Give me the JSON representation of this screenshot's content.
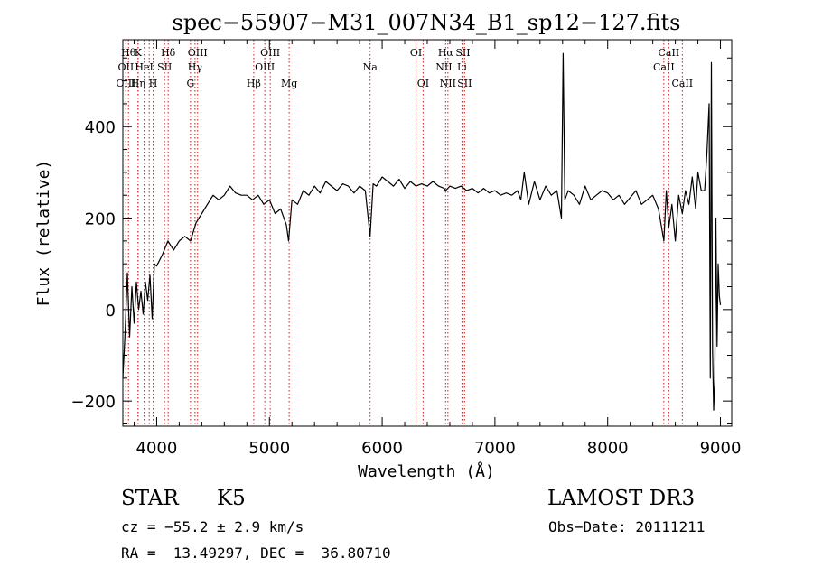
{
  "chart_data": {
    "type": "line",
    "title": "spec−55907−M31_007N34_B1_sp12−127.fits",
    "xlabel": "Wavelength (Å)",
    "ylabel": "Flux (relative)",
    "xlim": [
      3700,
      9100
    ],
    "ylim": [
      -255,
      590
    ],
    "xticks": [
      {
        "value": 4000,
        "label": "4000"
      },
      {
        "value": 5000,
        "label": "5000"
      },
      {
        "value": 6000,
        "label": "6000"
      },
      {
        "value": 7000,
        "label": "7000"
      },
      {
        "value": 8000,
        "label": "8000"
      },
      {
        "value": 9000,
        "label": "9000"
      }
    ],
    "yticks": [
      {
        "value": -200,
        "label": "−200"
      },
      {
        "value": 0,
        "label": "0"
      },
      {
        "value": 200,
        "label": "200"
      },
      {
        "value": 400,
        "label": "400"
      }
    ],
    "grid": false,
    "line_color": "#000000",
    "marker_color": "#b22222",
    "series": [
      {
        "x": [
          3700,
          3720,
          3740,
          3760,
          3780,
          3800,
          3820,
          3840,
          3860,
          3880,
          3900,
          3920,
          3940,
          3960,
          3980,
          4000,
          4050,
          4100,
          4150,
          4200,
          4250,
          4300,
          4350,
          4400,
          4450,
          4500,
          4550,
          4600,
          4650,
          4700,
          4750,
          4800,
          4850,
          4900,
          4950,
          5000,
          5050,
          5100,
          5150,
          5170,
          5200,
          5250,
          5300,
          5350,
          5400,
          5450,
          5500,
          5550,
          5600,
          5650,
          5700,
          5750,
          5800,
          5850,
          5893,
          5920,
          5950,
          6000,
          6050,
          6100,
          6150,
          6200,
          6250,
          6300,
          6350,
          6400,
          6450,
          6500,
          6550,
          6563,
          6600,
          6650,
          6700,
          6750,
          6800,
          6850,
          6900,
          6950,
          7000,
          7050,
          7100,
          7150,
          7200,
          7230,
          7260,
          7300,
          7350,
          7400,
          7450,
          7500,
          7550,
          7590,
          7605,
          7620,
          7650,
          7700,
          7750,
          7800,
          7850,
          7900,
          7950,
          8000,
          8050,
          8100,
          8150,
          8200,
          8250,
          8300,
          8350,
          8400,
          8450,
          8498,
          8520,
          8542,
          8570,
          8600,
          8630,
          8662,
          8690,
          8720,
          8750,
          8780,
          8800,
          8830,
          8860,
          8880,
          8900,
          8910,
          8920,
          8930,
          8940,
          8950,
          8960,
          8970,
          8980,
          8990,
          9000
        ],
        "y": [
          -150,
          -50,
          80,
          -60,
          50,
          -30,
          60,
          0,
          40,
          -10,
          60,
          20,
          75,
          -20,
          100,
          95,
          120,
          150,
          130,
          150,
          160,
          150,
          190,
          210,
          230,
          250,
          240,
          250,
          270,
          255,
          250,
          250,
          240,
          250,
          230,
          240,
          210,
          220,
          185,
          150,
          240,
          230,
          260,
          250,
          270,
          255,
          280,
          270,
          260,
          275,
          270,
          255,
          270,
          260,
          160,
          275,
          270,
          290,
          280,
          270,
          285,
          265,
          280,
          270,
          275,
          270,
          280,
          270,
          265,
          260,
          270,
          265,
          270,
          260,
          265,
          255,
          265,
          255,
          260,
          250,
          255,
          250,
          260,
          240,
          300,
          230,
          280,
          240,
          270,
          250,
          260,
          200,
          560,
          240,
          260,
          250,
          230,
          270,
          240,
          250,
          260,
          255,
          240,
          250,
          230,
          245,
          260,
          230,
          240,
          250,
          220,
          150,
          260,
          180,
          230,
          150,
          250,
          210,
          260,
          230,
          290,
          220,
          300,
          260,
          260,
          340,
          450,
          -150,
          540,
          -90,
          -220,
          -150,
          200,
          -80,
          100,
          30,
          10
        ]
      }
    ],
    "line_markers": [
      {
        "x": 3750,
        "label": "Hθ",
        "row": 1
      },
      {
        "x": 3727,
        "label": "OII",
        "row": 2
      },
      {
        "x": 3727,
        "label": "OIII",
        "row": 3
      },
      {
        "x": 3835,
        "label": "K",
        "row": 1
      },
      {
        "x": 3889,
        "label": "HeI",
        "row": 2
      },
      {
        "x": 3835,
        "label": "Hη",
        "row": 3
      },
      {
        "x": 3934,
        "label": "",
        "row": 0
      },
      {
        "x": 3969,
        "label": "H",
        "row": 3
      },
      {
        "x": 4070,
        "label": "SII",
        "row": 2
      },
      {
        "x": 4102,
        "label": "Hδ",
        "row": 1
      },
      {
        "x": 4300,
        "label": "G",
        "row": 3
      },
      {
        "x": 4340,
        "label": "Hγ",
        "row": 2
      },
      {
        "x": 4363,
        "label": "OIII",
        "row": 1
      },
      {
        "x": 4861,
        "label": "Hβ",
        "row": 3
      },
      {
        "x": 4959,
        "label": "OIII",
        "row": 2
      },
      {
        "x": 5007,
        "label": "OIII",
        "row": 1
      },
      {
        "x": 5175,
        "label": "Mg",
        "row": 3
      },
      {
        "x": 5893,
        "label": "Na",
        "row": 2
      },
      {
        "x": 6300,
        "label": "OI",
        "row": 1
      },
      {
        "x": 6363,
        "label": "OI",
        "row": 3
      },
      {
        "x": 6548,
        "label": "NII",
        "row": 2
      },
      {
        "x": 6563,
        "label": "Hα",
        "row": 1
      },
      {
        "x": 6583,
        "label": "NII",
        "row": 3
      },
      {
        "x": 6708,
        "label": "Li",
        "row": 2
      },
      {
        "x": 6716,
        "label": "SII",
        "row": 1
      },
      {
        "x": 6731,
        "label": "SII",
        "row": 3
      },
      {
        "x": 8498,
        "label": "CaII",
        "row": 2
      },
      {
        "x": 8542,
        "label": "CaII",
        "row": 1
      },
      {
        "x": 8662,
        "label": "CaII",
        "row": 3
      }
    ]
  },
  "info": {
    "object_class": "STAR",
    "subclass": "K5",
    "survey": "LAMOST DR3",
    "redshift": "cz = −55.2 ± 2.9 km/s",
    "obs_date": "Obs−Date: 20111211",
    "coords": "RA =  13.49297, DEC =  36.80710"
  }
}
